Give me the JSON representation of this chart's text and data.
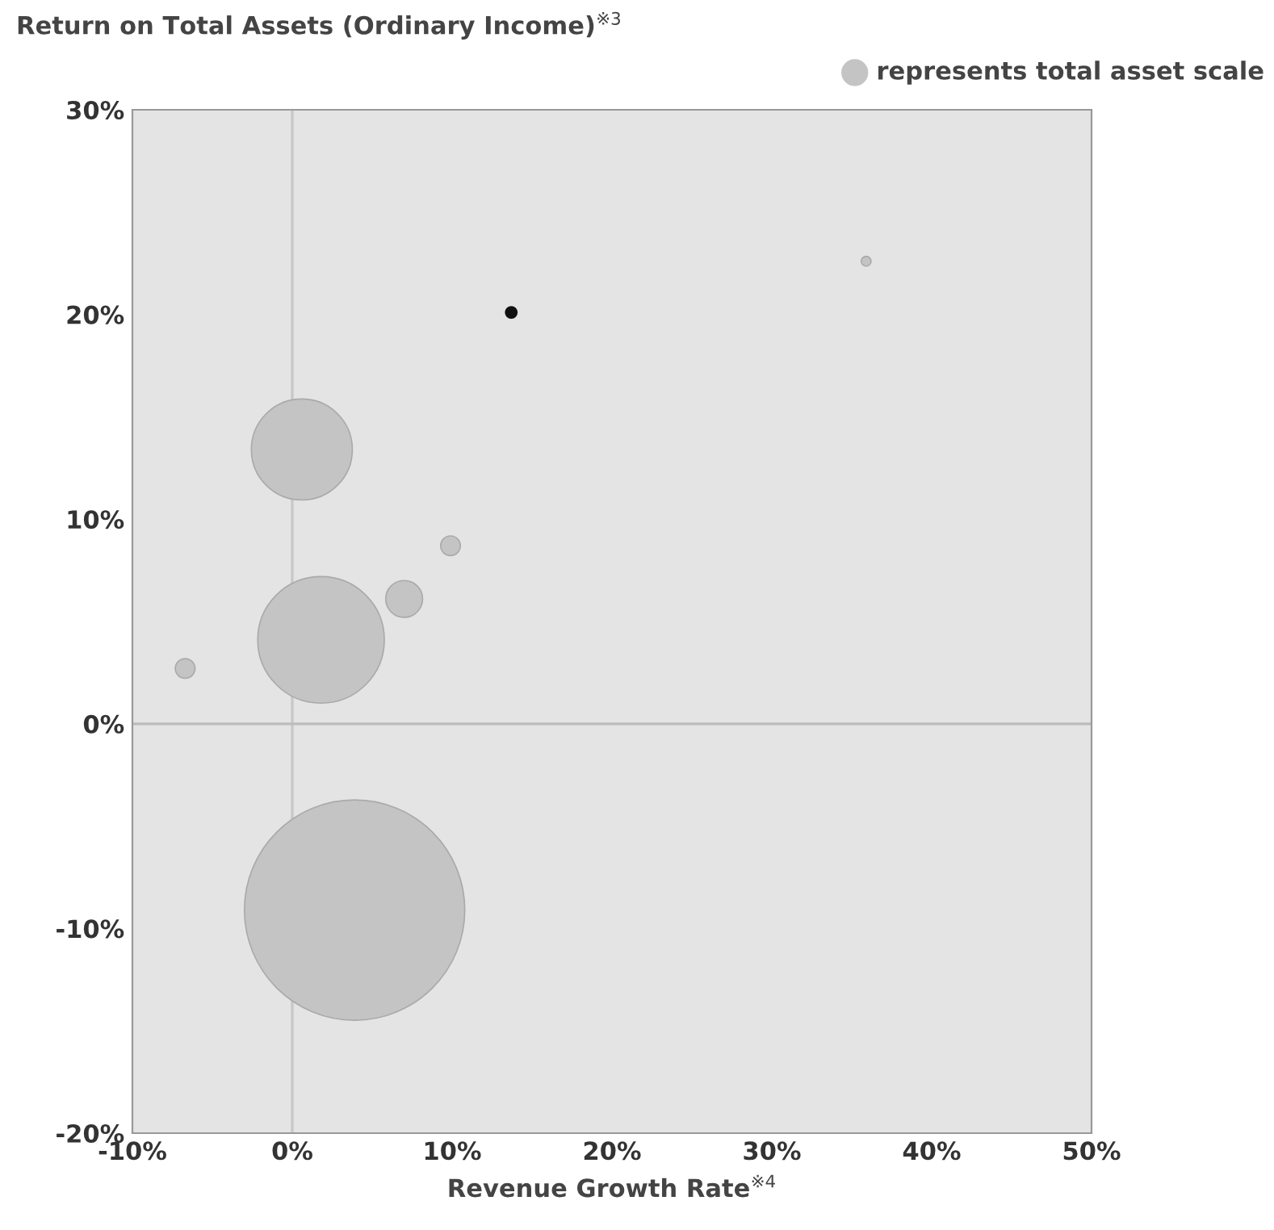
{
  "chart_data": {
    "type": "bubble",
    "ylabel": "Return on Total Assets (Ordinary Income)$^{※3}$",
    "xlabel": "Revenue Growth Rate$^{※4}$",
    "annotations": [
      "represents total asset scale"
    ],
    "x": [
      -6.7,
      0.6,
      1.8,
      7.0,
      9.9,
      13.7,
      35.9,
      3.9
    ],
    "values": [
      2.7,
      13.4,
      4.1,
      6.1,
      8.7,
      20.1,
      22.6,
      -9.1
    ],
    "sizes": [
      0.008,
      0.21,
      0.33,
      0.028,
      0.008,
      0.0027,
      0.002,
      1
    ],
    "colors": [
      "#c4c4c4",
      "#c4c4c4",
      "#c4c4c4",
      "#c4c4c4",
      "#c4c4c4",
      "#111111",
      "#c4c4c4",
      "#c4c4c4"
    ],
    "xlim": [
      -10,
      50
    ],
    "ylim": [
      -20,
      30
    ],
    "xticks": [
      {
        "value": -10,
        "label": "-10%"
      },
      {
        "value": 0,
        "label": "0%"
      },
      {
        "value": 10,
        "label": "10%"
      },
      {
        "value": 20,
        "label": "20%"
      },
      {
        "value": 30,
        "label": "30%"
      },
      {
        "value": 40,
        "label": "40%"
      },
      {
        "value": 50,
        "label": "50%"
      }
    ],
    "yticks": [
      {
        "value": -20,
        "label": "-20%"
      },
      {
        "value": -10,
        "label": "-10%"
      },
      {
        "value": 0,
        "label": "0%"
      },
      {
        "value": 10,
        "label": "10%"
      },
      {
        "value": 20,
        "label": "20%"
      },
      {
        "value": 30,
        "label": "30%"
      }
    ],
    "ref_lines": [
      {
        "axis": "x",
        "value": 0,
        "color": "#c8c8c8"
      },
      {
        "axis": "y",
        "value": 0,
        "color": "#bcbcbc"
      }
    ],
    "grid": false,
    "legend": false
  }
}
